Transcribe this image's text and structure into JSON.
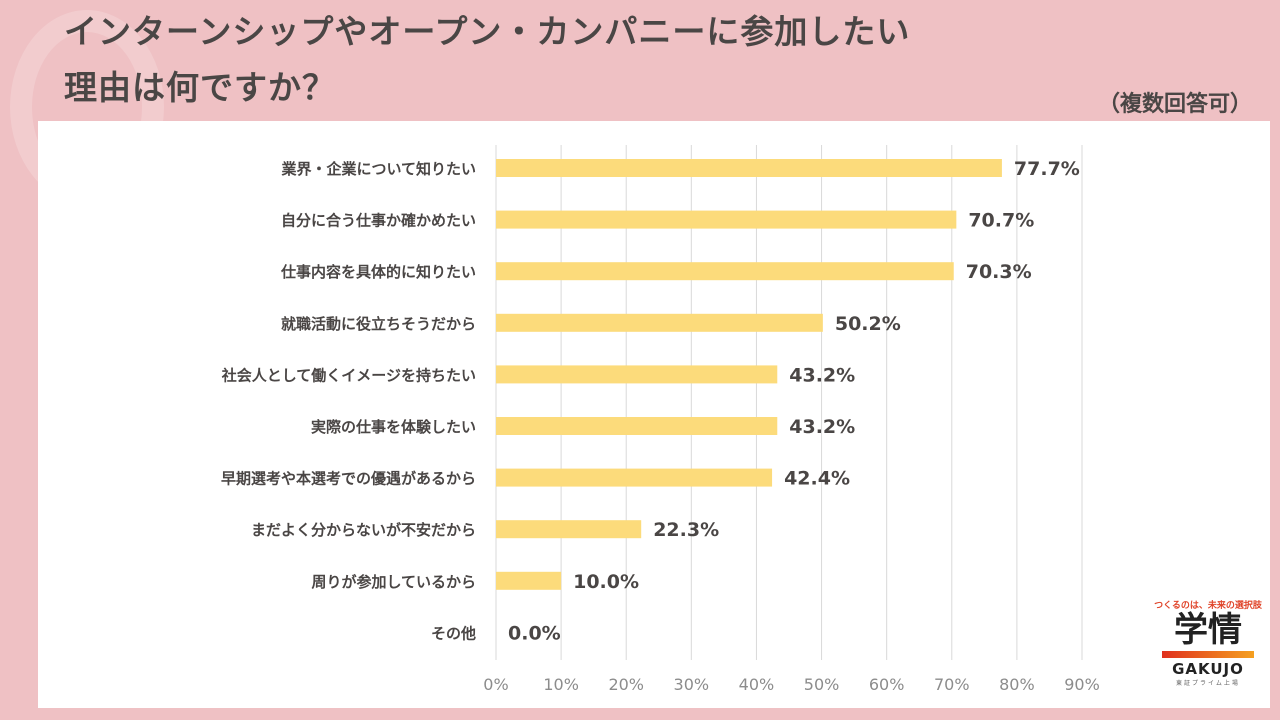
{
  "header": {
    "title_line1": "インターンシップやオープン・カンパニーに参加したい",
    "title_line2": "理由は何ですか？",
    "note": "（複数回答可）"
  },
  "logo": {
    "tagline": "つくるのは、未来の選択肢",
    "kanji": "学情",
    "english": "GAKUJO",
    "sub": "東証プライム上場"
  },
  "colors": {
    "background": "#efc1c4",
    "bar": "#fcdb7b",
    "grid": "#d9d9d9",
    "text": "#4a4645"
  },
  "chart_data": {
    "type": "bar",
    "orientation": "horizontal",
    "categories": [
      "業界・企業について知りたい",
      "自分に合う仕事か確かめたい",
      "仕事内容を具体的に知りたい",
      "就職活動に役立ちそうだから",
      "社会人として働くイメージを持ちたい",
      "実際の仕事を体験したい",
      "早期選考や本選考での優遇があるから",
      "まだよく分からないが不安だから",
      "周りが参加しているから",
      "その他"
    ],
    "values": [
      77.7,
      70.7,
      70.3,
      50.2,
      43.2,
      43.2,
      42.4,
      22.3,
      10.0,
      0.0
    ],
    "labels": [
      "77.7%",
      "70.7%",
      "70.3%",
      "50.2%",
      "43.2%",
      "43.2%",
      "42.4%",
      "22.3%",
      "10.0%",
      "0.0%"
    ],
    "xlim": [
      0,
      90
    ],
    "xticks": [
      "0%",
      "10%",
      "20%",
      "30%",
      "40%",
      "50%",
      "60%",
      "70%",
      "80%",
      "90%"
    ],
    "grid": true,
    "title": "",
    "xlabel": "",
    "ylabel": ""
  }
}
